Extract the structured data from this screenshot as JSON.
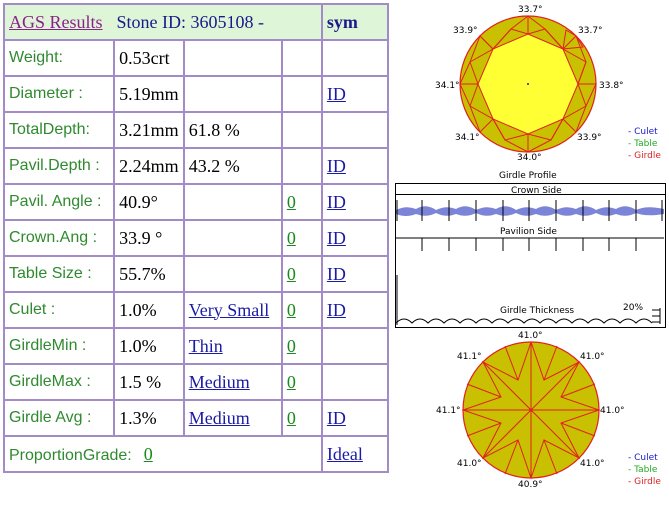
{
  "header": {
    "title": "AGS Results",
    "stone_id": "Stone ID:  3605108 -",
    "sym": "sym"
  },
  "rows": [
    {
      "label": "Weight:",
      "value": "0.53crt",
      "extra": "",
      "zero": "",
      "id": ""
    },
    {
      "label": "Diameter :",
      "value": "5.19mm",
      "extra": "",
      "zero": "",
      "id": "ID"
    },
    {
      "label": "TotalDepth:",
      "value": "3.21mm",
      "extra": "61.8 %",
      "zero": "",
      "id": ""
    },
    {
      "label": "Pavil.Depth :",
      "value": "2.24mm",
      "extra": "43.2 %",
      "zero": "",
      "id": "ID"
    },
    {
      "label": "Pavil. Angle :",
      "value": "40.9°",
      "extra": "",
      "zero": "0",
      "id": "ID"
    },
    {
      "label": "Crown.Ang :",
      "value": "33.9 °",
      "extra": "",
      "zero": "0",
      "id": "ID"
    },
    {
      "label": "Table Size :",
      "value": "55.7%",
      "extra": "",
      "zero": "0",
      "id": "ID"
    },
    {
      "label": "Culet :",
      "value": "1.0%",
      "extra": "Very Small",
      "zero": "0",
      "id": "ID"
    },
    {
      "label": "GirdleMin :",
      "value": "1.0%",
      "extra": "Thin",
      "zero": "0",
      "id": ""
    },
    {
      "label": "GirdleMax :",
      "value": "1.5 %",
      "extra": "Medium",
      "zero": "0",
      "id": ""
    },
    {
      "label": "Girdle Avg :",
      "value": "1.3%",
      "extra": "Medium",
      "zero": "0",
      "id": "ID"
    }
  ],
  "footer": {
    "label": "ProportionGrade:",
    "zero": "0",
    "grade": "Ideal"
  },
  "crown_diagram": {
    "angles": {
      "top": "33.7°",
      "top_left": "33.9°",
      "top_right": "33.7°",
      "left": "34.1°",
      "right": "33.8°",
      "bottom_left": "34.1°",
      "bottom_right": "33.9°",
      "bottom": "34.0°"
    },
    "legend": [
      "- Culet",
      "- Table",
      "- Girdle"
    ]
  },
  "girdle_profile": {
    "title": "Girdle Profile",
    "crown_side": "Crown Side",
    "pavilion_side": "Pavilion Side",
    "thickness_label": "Girdle Thickness",
    "percent": "20%"
  },
  "pavilion_diagram": {
    "angles": {
      "top": "41.0°",
      "top_left": "41.1°",
      "top_right": "41.0°",
      "left": "41.1°",
      "right": "41.0°",
      "bottom_left": "41.0°",
      "bottom_right": "41.0°",
      "bottom": "40.9°"
    },
    "legend": [
      "- Culet",
      "- Table",
      "- Girdle"
    ]
  },
  "colors": {
    "border": "#a38bc7",
    "header_bg": "#dff5d8",
    "label": "#2f8a2f",
    "link": "#1a1aa6",
    "diamond_fill": "#c8c000",
    "table_fill": "#ffff33",
    "facet_line": "#e02020",
    "culet": "#1a1acc",
    "table_legend": "#22aa22",
    "girdle_legend": "#dd2222"
  }
}
